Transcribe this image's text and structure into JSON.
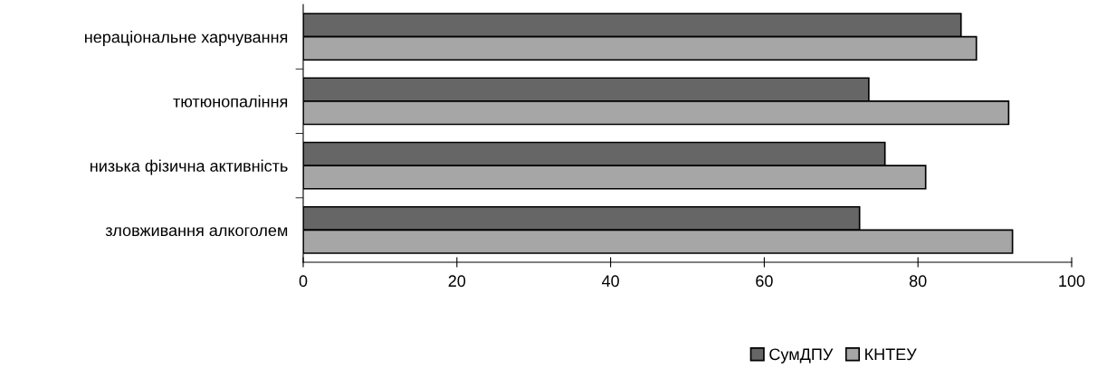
{
  "chart_data": {
    "type": "bar",
    "orientation": "horizontal",
    "categories": [
      "нераціональне харчування",
      "тютюнопаління",
      "низька фізична активність",
      "зловживання алкоголем"
    ],
    "series": [
      {
        "name": "СумДПУ",
        "color": "#666666",
        "values": [
          85.6,
          73.6,
          75.7,
          72.4
        ]
      },
      {
        "name": "КНТЕУ",
        "color": "#a6a6a6",
        "values": [
          87.6,
          91.8,
          81.0,
          92.3
        ]
      }
    ],
    "xlim": [
      0,
      100
    ],
    "xticks": [
      0,
      20,
      40,
      60,
      80,
      100
    ],
    "grid": false,
    "legend": "bottom"
  }
}
